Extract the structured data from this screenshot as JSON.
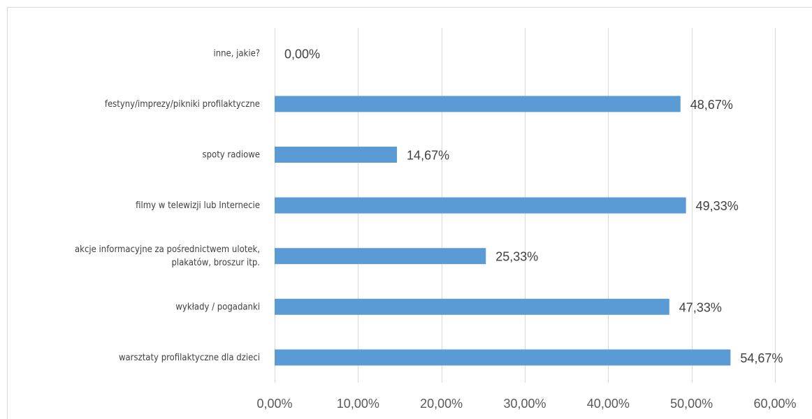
{
  "chart_data": {
    "type": "bar",
    "orientation": "horizontal",
    "categories": [
      "inne, jakie?",
      "festyny/imprezy/pikniki profilaktyczne",
      "spoty radiowe",
      "filmy w telewizji lub Internecie",
      "akcje informacyjne za pośrednictwem ulotek, plakatów, broszur itp.",
      "wykłady / pogadanki",
      "warsztaty profilaktyczne dla dzieci"
    ],
    "category_lines": [
      [
        "inne, jakie?"
      ],
      [
        "festyny/imprezy/pikniki profilaktyczne"
      ],
      [
        "spoty radiowe"
      ],
      [
        "filmy w telewizji lub Internecie"
      ],
      [
        "akcje informacyjne za pośrednictwem ulotek,",
        "plakatów, broszur itp."
      ],
      [
        "wykłady / pogadanki"
      ],
      [
        "warsztaty profilaktyczne dla dzieci"
      ]
    ],
    "values": [
      0.0,
      48.67,
      14.67,
      49.33,
      25.33,
      47.33,
      54.67
    ],
    "data_labels": [
      "0,00%",
      "48,67%",
      "14,67%",
      "49,33%",
      "25,33%",
      "47,33%",
      "54,67%"
    ],
    "xlim": [
      0,
      60
    ],
    "x_ticks": [
      0,
      10,
      20,
      30,
      40,
      50,
      60
    ],
    "x_tick_labels": [
      "0,00%",
      "10,00%",
      "20,00%",
      "30,00%",
      "40,00%",
      "50,00%",
      "60,00%"
    ],
    "title": "",
    "xlabel": "",
    "ylabel": "",
    "grid": "vertical",
    "legend": "none",
    "bar_color": "#5b9bd5",
    "grid_color": "#d9d9d9",
    "text_color": "#404040"
  }
}
